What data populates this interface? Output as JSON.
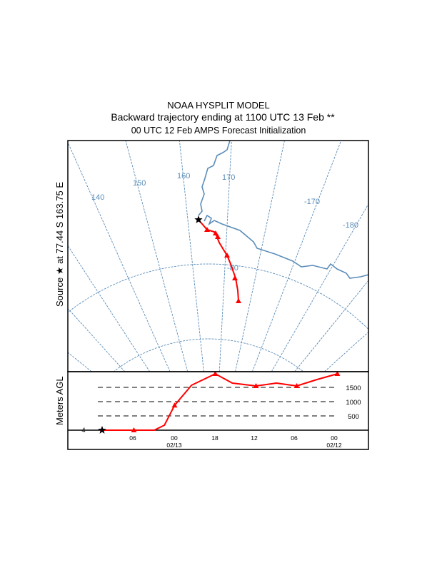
{
  "titles": {
    "line1": "NOAA HYSPLIT MODEL",
    "line2": "Backward trajectory ending at 1100 UTC 13 Feb **",
    "line3": "00 UTC 12 Feb    AMPS  Forecast Initialization"
  },
  "source_label": "Source  ★  at   77.44 S  163.75 E",
  "colors": {
    "trajectory": "#ff0000",
    "map": "#5b8db8",
    "frame": "#000000"
  },
  "chart_data": [
    {
      "type": "map",
      "meridian_labels": [
        "140",
        "150",
        "160",
        "170",
        "-170",
        "-180"
      ],
      "latitude_labels": [
        "-80"
      ],
      "source": {
        "lat": -77.44,
        "lon": 163.75,
        "marker": "star"
      }
    },
    {
      "type": "line",
      "ylabel": "Meters AGL",
      "y_ticks": [
        500,
        1000,
        1500
      ],
      "ground_label": "4",
      "x_tick_labels": [
        {
          "time": "06",
          "date": ""
        },
        {
          "time": "00",
          "date": "02/13"
        },
        {
          "time": "18",
          "date": ""
        },
        {
          "time": "12",
          "date": ""
        },
        {
          "time": "06",
          "date": ""
        },
        {
          "time": "00",
          "date": "02/12"
        }
      ],
      "series": [
        {
          "hours_back": [
            0,
            5,
            8,
            9.5,
            11,
            13.5,
            17,
            19.5,
            23,
            26,
            29,
            32,
            35
          ],
          "height_m": [
            0,
            0,
            0,
            175,
            870,
            1575,
            1975,
            1650,
            1550,
            1650,
            1550,
            1775,
            1975
          ]
        }
      ],
      "marker_hours_back": [
        5,
        11,
        17,
        23,
        29,
        35
      ]
    }
  ]
}
